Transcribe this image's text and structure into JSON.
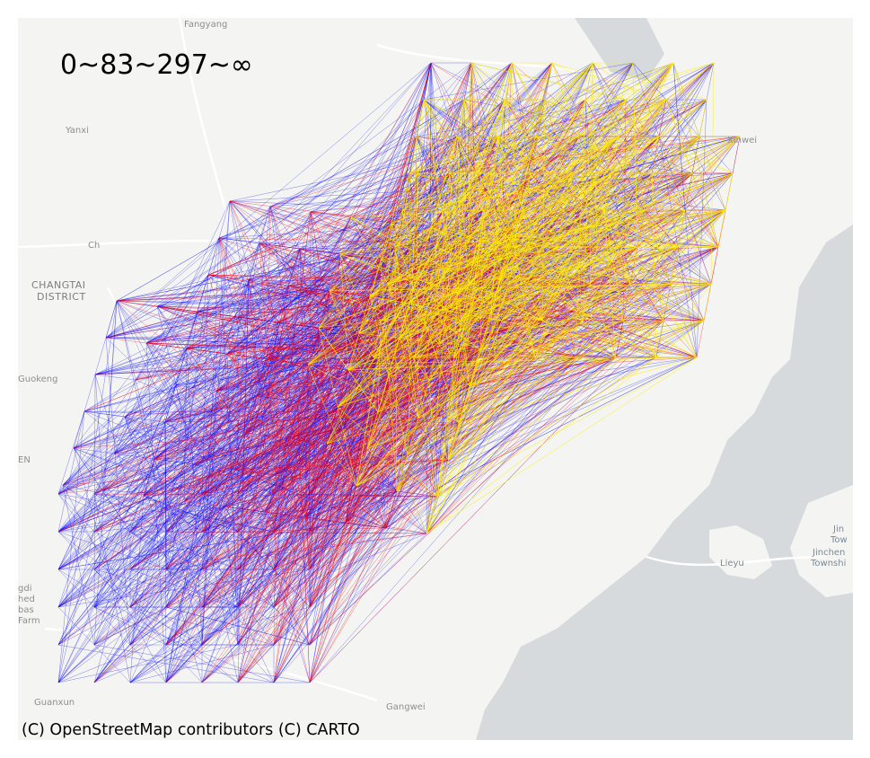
{
  "legend": {
    "title": "0~83~297~∞"
  },
  "attribution": "(C) OpenStreetMap contributors (C) CARTO",
  "basemap": {
    "land_color": "#f4f4f2",
    "water_color": "#d6dadd",
    "road_color": "#ffffff",
    "labels": {
      "fangyang": "Fangyang",
      "yanxi": "Yanxi",
      "changtai_1": "CHANGTAI",
      "changtai_2": "DISTRICT",
      "ch": "Ch",
      "guokeng": "Guokeng",
      "en": "EN",
      "xinwei": "Xinwei",
      "gdi_1": "gdi",
      "gdi_2": "hed",
      "gdi_3": "bas",
      "gdi_4": "Farm",
      "guanxun": "Guanxun",
      "gangwei": "Gangwei",
      "lieyu": "Lieyu",
      "jinhu_1": "Jin",
      "jinhu_2": "Tow",
      "jincheng_1": "Jinchen",
      "jincheng_2": "Townshi"
    }
  },
  "flows": {
    "class_breaks": [
      0,
      83,
      297,
      "∞"
    ],
    "class_colors": [
      "#0000ff",
      "#ff0000",
      "#ffee00"
    ]
  }
}
